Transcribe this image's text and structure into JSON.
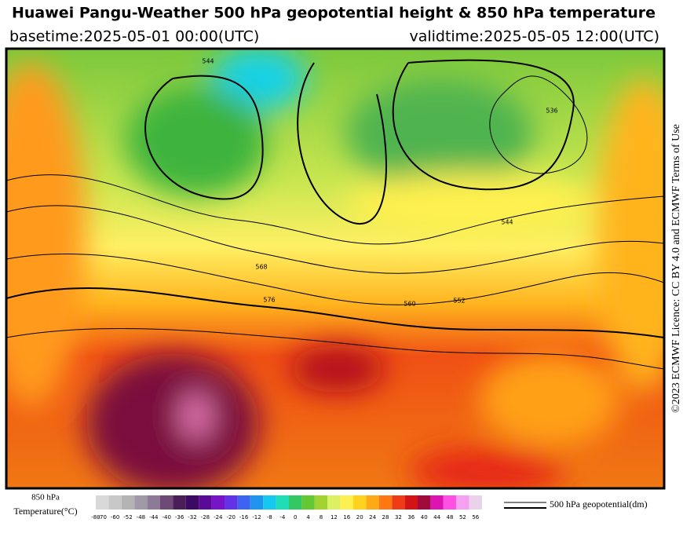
{
  "header": {
    "title": "Huawei Pangu-Weather 500 hPa geopotential height & 850 hPa temperature",
    "basetime": "basetime:2025-05-01 00:00(UTC)",
    "validtime": "validtime:2025-05-05 12:00(UTC)"
  },
  "licence": "©2023 ECMWF Licence: CC BY 4.0 and ECMWF Terms of Use",
  "map": {
    "contour_labels": [
      "544",
      "568",
      "576",
      "560",
      "552",
      "544",
      "536"
    ]
  },
  "colorbar": {
    "title_line1": "850 hPa",
    "title_line2": "Temperature(°C)",
    "labels": [
      "-80",
      "-70",
      "-60",
      "-52",
      "-48",
      "-44",
      "-40",
      "-36",
      "-32",
      "-28",
      "-24",
      "-20",
      "-16",
      "-12",
      "-8",
      "-4",
      "0",
      "4",
      "8",
      "12",
      "16",
      "20",
      "24",
      "28",
      "32",
      "36",
      "40",
      "44",
      "48",
      "52",
      "56"
    ],
    "colors": [
      "#d9d9d9",
      "#c8c8c8",
      "#b4b4b4",
      "#a09aa8",
      "#8c7a96",
      "#6e4a78",
      "#4b1e5a",
      "#3c0a64",
      "#5a0a96",
      "#7814c8",
      "#6432e6",
      "#3c64f0",
      "#1e96f0",
      "#14c8f0",
      "#1edcb4",
      "#32c864",
      "#64c832",
      "#a0d232",
      "#dcf064",
      "#fff050",
      "#ffd21e",
      "#ffaa14",
      "#ff7814",
      "#f03c14",
      "#d21414",
      "#a00a3c",
      "#dc14b4",
      "#ff50e6",
      "#f5a0f0",
      "#ebd2eb"
    ]
  },
  "legend": {
    "label": "500 hPa geopotential(dm)"
  }
}
